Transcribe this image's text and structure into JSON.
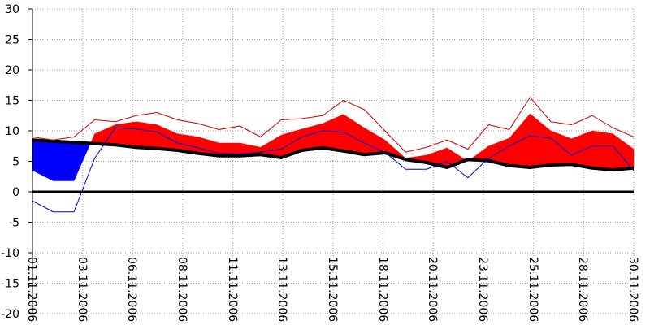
{
  "chart_data": {
    "type": "line",
    "x": [
      1,
      2,
      3,
      4,
      5,
      6,
      7,
      8,
      9,
      10,
      11,
      12,
      13,
      14,
      15,
      16,
      17,
      18,
      19,
      20,
      21,
      22,
      23,
      24,
      25,
      26,
      27,
      28,
      29,
      30
    ],
    "xlim": [
      1,
      30
    ],
    "xticks": [
      {
        "value": 1,
        "label": "01.11.2006"
      },
      {
        "value": 3.42,
        "label": "03.11.2006"
      },
      {
        "value": 5.83,
        "label": "06.11.2006"
      },
      {
        "value": 8.25,
        "label": "08.11.2006"
      },
      {
        "value": 10.67,
        "label": "11.11.2006"
      },
      {
        "value": 13.08,
        "label": "13.11.2006"
      },
      {
        "value": 15.5,
        "label": "15.11.2006"
      },
      {
        "value": 17.92,
        "label": "18.11.2006"
      },
      {
        "value": 20.33,
        "label": "20.11.2006"
      },
      {
        "value": 22.75,
        "label": "23.11.2006"
      },
      {
        "value": 25.17,
        "label": "25.11.2006"
      },
      {
        "value": 27.58,
        "label": "28.11.2006"
      },
      {
        "value": 30,
        "label": "30.11.2006"
      }
    ],
    "ylim": [
      -20,
      30
    ],
    "yticks": [
      -20,
      -15,
      -10,
      -5,
      0,
      5,
      10,
      15,
      20,
      25,
      30
    ],
    "grid": true,
    "series": [
      {
        "color": "#000000",
        "values": [
          8.5,
          8.3,
          8.1,
          7.9,
          7.7,
          7.3,
          7.1,
          6.8,
          6.3,
          5.9,
          5.9,
          6.1,
          5.6,
          6.8,
          7.2,
          6.7,
          6.1,
          6.4,
          5.3,
          4.8,
          4.0,
          5.3,
          5.1,
          4.3,
          4.0,
          4.4,
          4.5,
          3.9,
          3.6,
          3.9
        ]
      },
      {
        "color": "#cc0000",
        "values": [
          9,
          8.5,
          9,
          11.8,
          11.5,
          12.5,
          13,
          11.8,
          11.2,
          10.2,
          10.8,
          9,
          11.8,
          12,
          12.5,
          15,
          13.5,
          10,
          6.5,
          7.3,
          8.5,
          7,
          11,
          10.2,
          15.5,
          11.5,
          11,
          12.5,
          10.5,
          9
        ]
      },
      {
        "color": "#0000cc",
        "values": [
          -1.5,
          -3.3,
          -3.3,
          5.5,
          10.5,
          10.3,
          9.8,
          8,
          7.2,
          6.3,
          6.2,
          6.5,
          7,
          9,
          10,
          9.8,
          8,
          6.5,
          3.7,
          3.7,
          5,
          2.3,
          5.5,
          7.5,
          9.2,
          8.8,
          6,
          7.5,
          7.5,
          3.5
        ]
      }
    ],
    "fill": {
      "values": [
        3.5,
        1.8,
        1.8,
        9.5,
        11,
        11.5,
        11,
        9.5,
        9,
        8,
        8,
        7.3,
        9.3,
        10.3,
        11.2,
        12.7,
        10.5,
        8.5,
        5.5,
        6,
        7.2,
        5,
        7.5,
        8.8,
        12.8,
        10,
        8.7,
        10,
        9.5,
        7
      ],
      "above_color": "#ff0000",
      "below_color": "#0000ff"
    }
  }
}
